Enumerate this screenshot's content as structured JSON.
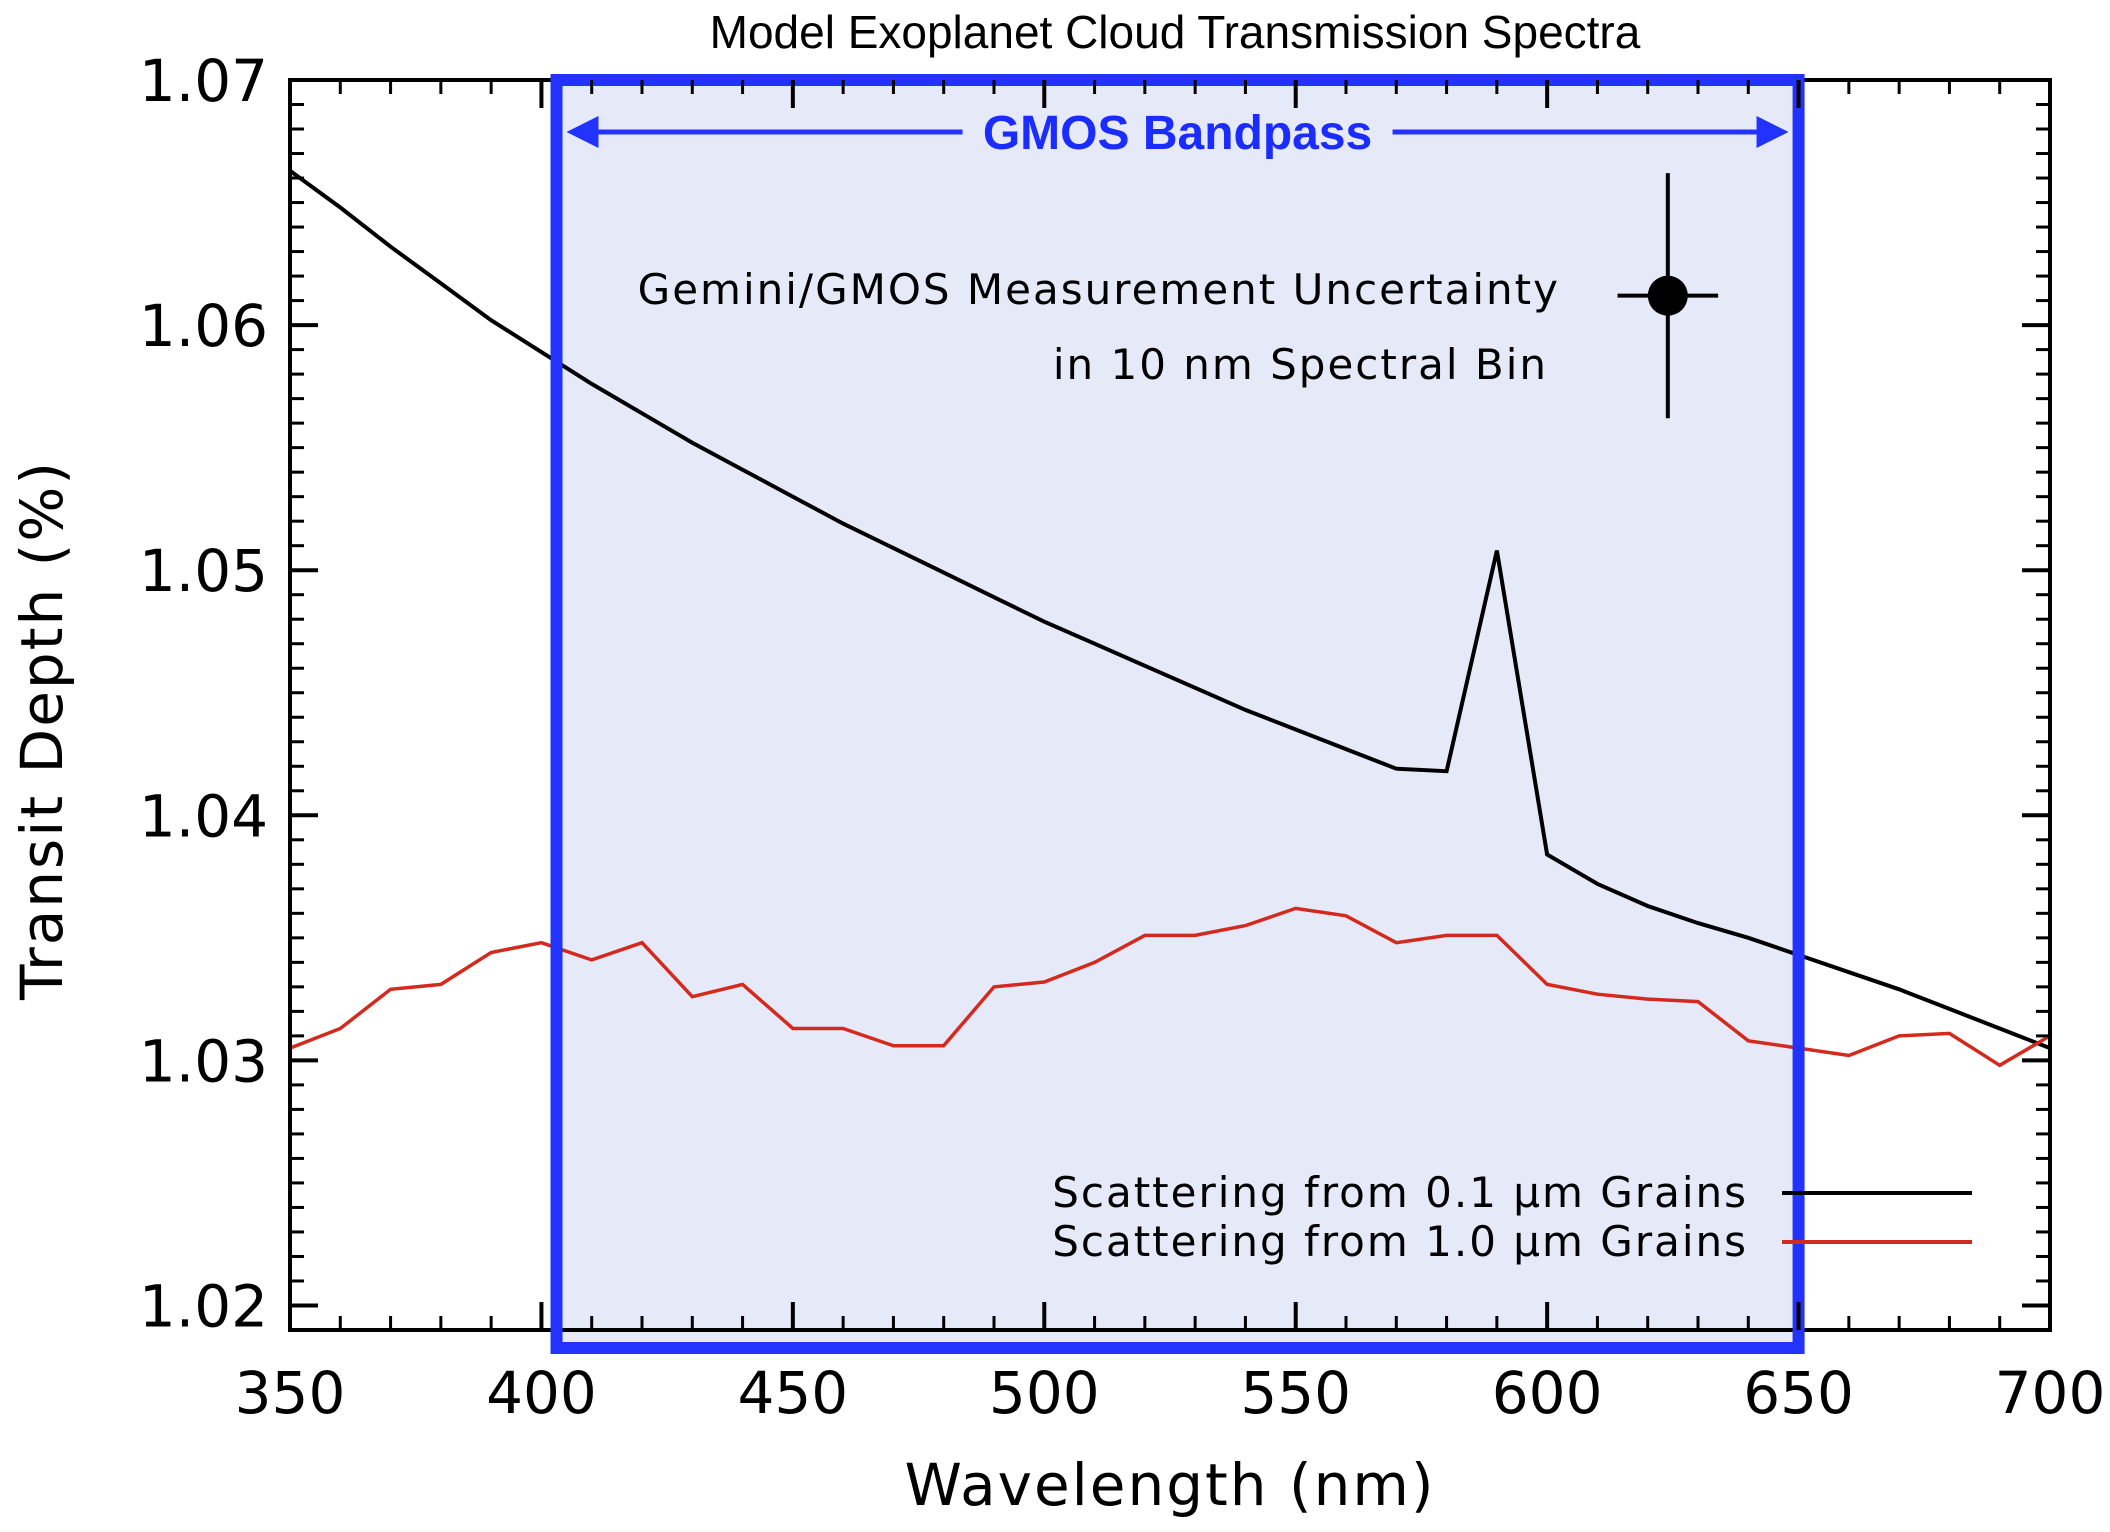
{
  "chart_data": {
    "type": "line",
    "title": "Model Exoplanet Cloud Transmission Spectra",
    "xlabel": "Wavelength (nm)",
    "ylabel": "Transit Depth (%)",
    "xlim": [
      350,
      700
    ],
    "ylim": [
      1.019,
      1.07
    ],
    "xticks": [
      350,
      400,
      450,
      500,
      550,
      600,
      650,
      700
    ],
    "xtick_labels": [
      "350",
      "400",
      "450",
      "500",
      "550",
      "600",
      "650",
      "700"
    ],
    "yticks": [
      1.02,
      1.03,
      1.04,
      1.05,
      1.06,
      1.07
    ],
    "ytick_labels": [
      "1.02",
      "1.03",
      "1.04",
      "1.05",
      "1.06",
      "1.07"
    ],
    "grid": false,
    "legend_position": "bottom-right",
    "series": [
      {
        "name": "Scattering from 0.1 μm Grains",
        "color": "#000000",
        "x": [
          350,
          360,
          370,
          380,
          390,
          400,
          410,
          420,
          430,
          440,
          450,
          460,
          470,
          480,
          490,
          500,
          510,
          520,
          530,
          540,
          550,
          560,
          570,
          580,
          590,
          600,
          610,
          620,
          630,
          640,
          650,
          660,
          670,
          680,
          690,
          700
        ],
        "y": [
          1.0663,
          1.0648,
          1.0632,
          1.0617,
          1.0602,
          1.0589,
          1.0576,
          1.0564,
          1.0552,
          1.0541,
          1.053,
          1.0519,
          1.0509,
          1.0499,
          1.0489,
          1.0479,
          1.047,
          1.0461,
          1.0452,
          1.0443,
          1.0435,
          1.0427,
          1.0419,
          1.0418,
          1.0508,
          1.0384,
          1.0372,
          1.0363,
          1.0356,
          1.035,
          1.0343,
          1.0336,
          1.0329,
          1.0321,
          1.0313,
          1.0305
        ]
      },
      {
        "name": "Scattering from 1.0 μm Grains",
        "color": "#d42a1e",
        "x": [
          350,
          360,
          370,
          380,
          390,
          400,
          410,
          420,
          430,
          440,
          450,
          460,
          470,
          480,
          490,
          500,
          510,
          520,
          530,
          540,
          550,
          560,
          570,
          580,
          590,
          600,
          610,
          620,
          630,
          640,
          650,
          660,
          670,
          680,
          690,
          700
        ],
        "y": [
          1.0305,
          1.0313,
          1.0329,
          1.0331,
          1.0344,
          1.0348,
          1.0341,
          1.0348,
          1.0326,
          1.0331,
          1.0313,
          1.0313,
          1.0306,
          1.0306,
          1.033,
          1.0332,
          1.034,
          1.0351,
          1.0351,
          1.0355,
          1.0362,
          1.0359,
          1.0348,
          1.0351,
          1.0351,
          1.0331,
          1.0327,
          1.0325,
          1.0324,
          1.0308,
          1.0305,
          1.0302,
          1.031,
          1.0311,
          1.0298,
          1.031
        ]
      }
    ],
    "band": {
      "label": "GMOS Bandpass",
      "x_range": [
        403,
        650
      ],
      "color": "#2233ff",
      "fill": "#e6e9f8"
    },
    "error_point": {
      "label_lines": [
        "Gemini/GMOS Measurement Uncertainty",
        "in 10 nm Spectral Bin"
      ],
      "x": 624,
      "y": 1.0612,
      "xerr": 10,
      "yerr": 0.005
    }
  }
}
